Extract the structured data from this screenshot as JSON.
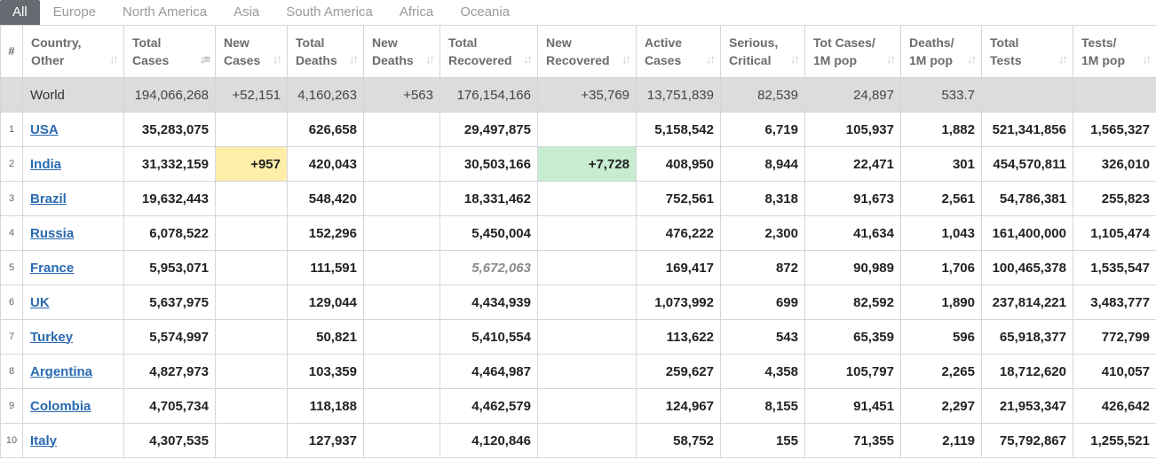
{
  "tabs": [
    "All",
    "Europe",
    "North America",
    "Asia",
    "South America",
    "Africa",
    "Oceania"
  ],
  "headers": [
    {
      "l1": "#",
      "l2": ""
    },
    {
      "l1": "Country,",
      "l2": "Other"
    },
    {
      "l1": "Total",
      "l2": "Cases"
    },
    {
      "l1": "New",
      "l2": "Cases"
    },
    {
      "l1": "Total",
      "l2": "Deaths"
    },
    {
      "l1": "New",
      "l2": "Deaths"
    },
    {
      "l1": "Total",
      "l2": "Recovered"
    },
    {
      "l1": "New",
      "l2": "Recovered"
    },
    {
      "l1": "Active",
      "l2": "Cases"
    },
    {
      "l1": "Serious,",
      "l2": "Critical"
    },
    {
      "l1": "Tot Cases/",
      "l2": "1M pop"
    },
    {
      "l1": "Deaths/",
      "l2": "1M pop"
    },
    {
      "l1": "Total",
      "l2": "Tests"
    },
    {
      "l1": "Tests/",
      "l2": "1M pop"
    }
  ],
  "world": {
    "country": "World",
    "total_cases": "194,066,268",
    "new_cases": "+52,151",
    "total_deaths": "4,160,263",
    "new_deaths": "+563",
    "total_recovered": "176,154,166",
    "new_recovered": "+35,769",
    "active_cases": "13,751,839",
    "serious": "82,539",
    "cases_per_1m": "24,897",
    "deaths_per_1m": "533.7",
    "total_tests": "",
    "tests_per_1m": ""
  },
  "rows": [
    {
      "idx": "1",
      "country": "USA",
      "total_cases": "35,283,075",
      "new_cases": "",
      "total_deaths": "626,658",
      "new_deaths": "",
      "total_recovered": "29,497,875",
      "new_recovered": "",
      "active_cases": "5,158,542",
      "serious": "6,719",
      "cases_per_1m": "105,937",
      "deaths_per_1m": "1,882",
      "total_tests": "521,341,856",
      "tests_per_1m": "1,565,327"
    },
    {
      "idx": "2",
      "country": "India",
      "total_cases": "31,332,159",
      "new_cases": "+957",
      "total_deaths": "420,043",
      "new_deaths": "",
      "total_recovered": "30,503,166",
      "new_recovered": "+7,728",
      "active_cases": "408,950",
      "serious": "8,944",
      "cases_per_1m": "22,471",
      "deaths_per_1m": "301",
      "total_tests": "454,570,811",
      "tests_per_1m": "326,010"
    },
    {
      "idx": "3",
      "country": "Brazil",
      "total_cases": "19,632,443",
      "new_cases": "",
      "total_deaths": "548,420",
      "new_deaths": "",
      "total_recovered": "18,331,462",
      "new_recovered": "",
      "active_cases": "752,561",
      "serious": "8,318",
      "cases_per_1m": "91,673",
      "deaths_per_1m": "2,561",
      "total_tests": "54,786,381",
      "tests_per_1m": "255,823"
    },
    {
      "idx": "4",
      "country": "Russia",
      "total_cases": "6,078,522",
      "new_cases": "",
      "total_deaths": "152,296",
      "new_deaths": "",
      "total_recovered": "5,450,004",
      "new_recovered": "",
      "active_cases": "476,222",
      "serious": "2,300",
      "cases_per_1m": "41,634",
      "deaths_per_1m": "1,043",
      "total_tests": "161,400,000",
      "tests_per_1m": "1,105,474"
    },
    {
      "idx": "5",
      "country": "France",
      "total_cases": "5,953,071",
      "new_cases": "",
      "total_deaths": "111,591",
      "new_deaths": "",
      "total_recovered": "5,672,063",
      "new_recovered": "",
      "active_cases": "169,417",
      "serious": "872",
      "cases_per_1m": "90,989",
      "deaths_per_1m": "1,706",
      "total_tests": "100,465,378",
      "tests_per_1m": "1,535,547"
    },
    {
      "idx": "6",
      "country": "UK",
      "total_cases": "5,637,975",
      "new_cases": "",
      "total_deaths": "129,044",
      "new_deaths": "",
      "total_recovered": "4,434,939",
      "new_recovered": "",
      "active_cases": "1,073,992",
      "serious": "699",
      "cases_per_1m": "82,592",
      "deaths_per_1m": "1,890",
      "total_tests": "237,814,221",
      "tests_per_1m": "3,483,777"
    },
    {
      "idx": "7",
      "country": "Turkey",
      "total_cases": "5,574,997",
      "new_cases": "",
      "total_deaths": "50,821",
      "new_deaths": "",
      "total_recovered": "5,410,554",
      "new_recovered": "",
      "active_cases": "113,622",
      "serious": "543",
      "cases_per_1m": "65,359",
      "deaths_per_1m": "596",
      "total_tests": "65,918,377",
      "tests_per_1m": "772,799"
    },
    {
      "idx": "8",
      "country": "Argentina",
      "total_cases": "4,827,973",
      "new_cases": "",
      "total_deaths": "103,359",
      "new_deaths": "",
      "total_recovered": "4,464,987",
      "new_recovered": "",
      "active_cases": "259,627",
      "serious": "4,358",
      "cases_per_1m": "105,797",
      "deaths_per_1m": "2,265",
      "total_tests": "18,712,620",
      "tests_per_1m": "410,057"
    },
    {
      "idx": "9",
      "country": "Colombia",
      "total_cases": "4,705,734",
      "new_cases": "",
      "total_deaths": "118,188",
      "new_deaths": "",
      "total_recovered": "4,462,579",
      "new_recovered": "",
      "active_cases": "124,967",
      "serious": "8,155",
      "cases_per_1m": "91,451",
      "deaths_per_1m": "2,297",
      "total_tests": "21,953,347",
      "tests_per_1m": "426,642"
    },
    {
      "idx": "10",
      "country": "Italy",
      "total_cases": "4,307,535",
      "new_cases": "",
      "total_deaths": "127,937",
      "new_deaths": "",
      "total_recovered": "4,120,846",
      "new_recovered": "",
      "active_cases": "58,752",
      "serious": "155",
      "cases_per_1m": "71,355",
      "deaths_per_1m": "2,119",
      "total_tests": "75,792,867",
      "tests_per_1m": "1,255,521"
    }
  ],
  "colors": {
    "active_tab": "#666b72",
    "highlight_new_cases": "#ffeeaa",
    "highlight_new_recovered": "#c8ecd0",
    "link": "#2a6ab1",
    "world_row": "#dcdcdc"
  }
}
